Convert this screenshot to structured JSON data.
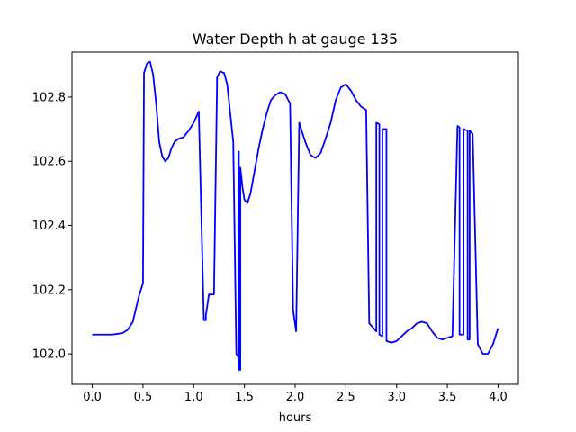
{
  "chart_data": {
    "type": "line",
    "title": "Water Depth h at gauge 135",
    "xlabel": "hours",
    "ylabel": "",
    "xlim": [
      -0.2,
      4.2
    ],
    "ylim": [
      101.905,
      102.94
    ],
    "xticks": [
      0.0,
      0.5,
      1.0,
      1.5,
      2.0,
      2.5,
      3.0,
      3.5,
      4.0
    ],
    "xtick_labels": [
      "0.0",
      "0.5",
      "1.0",
      "1.5",
      "2.0",
      "2.5",
      "3.0",
      "3.5",
      "4.0"
    ],
    "yticks": [
      102.0,
      102.2,
      102.4,
      102.6,
      102.8
    ],
    "ytick_labels": [
      "102.0",
      "102.2",
      "102.4",
      "102.6",
      "102.8"
    ],
    "grid": false,
    "colors": {
      "series": "#0000ff",
      "axes": "#000000",
      "background": "#ffffff"
    },
    "series": [
      {
        "name": "",
        "x": [
          0.0,
          0.1,
          0.2,
          0.3,
          0.35,
          0.4,
          0.43,
          0.46,
          0.5,
          0.51,
          0.51,
          0.54,
          0.57,
          0.6,
          0.63,
          0.66,
          0.69,
          0.72,
          0.75,
          0.78,
          0.81,
          0.85,
          0.9,
          0.95,
          1.0,
          1.05,
          1.1,
          1.12,
          1.12,
          1.15,
          1.2,
          1.23,
          1.23,
          1.26,
          1.3,
          1.33,
          1.36,
          1.39,
          1.42,
          1.44,
          1.44,
          1.445,
          1.445,
          1.46,
          1.46,
          1.48,
          1.5,
          1.53,
          1.56,
          1.6,
          1.64,
          1.68,
          1.72,
          1.76,
          1.8,
          1.85,
          1.9,
          1.95,
          1.98,
          1.98,
          2.01,
          2.04,
          2.04,
          2.07,
          2.1,
          2.15,
          2.2,
          2.25,
          2.3,
          2.35,
          2.4,
          2.45,
          2.5,
          2.55,
          2.6,
          2.65,
          2.7,
          2.73,
          2.73,
          2.8,
          2.8,
          2.83,
          2.83,
          2.86,
          2.86,
          2.9,
          2.9,
          2.95,
          3.0,
          3.05,
          3.1,
          3.15,
          3.2,
          3.25,
          3.3,
          3.35,
          3.4,
          3.45,
          3.5,
          3.55,
          3.6,
          3.62,
          3.62,
          3.66,
          3.66,
          3.7,
          3.7,
          3.72,
          3.72,
          3.75,
          3.75,
          3.8,
          3.85,
          3.9,
          3.95,
          4.0
        ],
        "y": [
          102.06,
          102.06,
          102.06,
          102.065,
          102.075,
          102.1,
          102.14,
          102.18,
          102.22,
          102.87,
          102.875,
          102.905,
          102.91,
          102.87,
          102.78,
          102.66,
          102.615,
          102.6,
          102.61,
          102.64,
          102.66,
          102.67,
          102.675,
          102.695,
          102.72,
          102.755,
          102.105,
          102.105,
          102.12,
          102.185,
          102.185,
          102.84,
          102.86,
          102.88,
          102.875,
          102.84,
          102.75,
          102.66,
          102.0,
          101.99,
          102.63,
          102.63,
          101.95,
          101.95,
          102.58,
          102.52,
          102.48,
          102.47,
          102.5,
          102.57,
          102.64,
          102.7,
          102.75,
          102.79,
          102.805,
          102.815,
          102.81,
          102.78,
          102.135,
          102.135,
          102.07,
          102.72,
          102.72,
          102.69,
          102.66,
          102.62,
          102.61,
          102.625,
          102.67,
          102.72,
          102.79,
          102.83,
          102.84,
          102.82,
          102.79,
          102.77,
          102.76,
          102.095,
          102.095,
          102.07,
          102.72,
          102.715,
          102.06,
          102.055,
          102.7,
          102.7,
          102.04,
          102.035,
          102.04,
          102.055,
          102.07,
          102.08,
          102.095,
          102.1,
          102.095,
          102.07,
          102.05,
          102.045,
          102.05,
          102.055,
          102.71,
          102.705,
          102.06,
          102.06,
          102.7,
          102.695,
          102.045,
          102.045,
          102.695,
          102.685,
          102.685,
          102.03,
          102.0,
          102.0,
          102.03,
          102.08
        ]
      }
    ]
  }
}
